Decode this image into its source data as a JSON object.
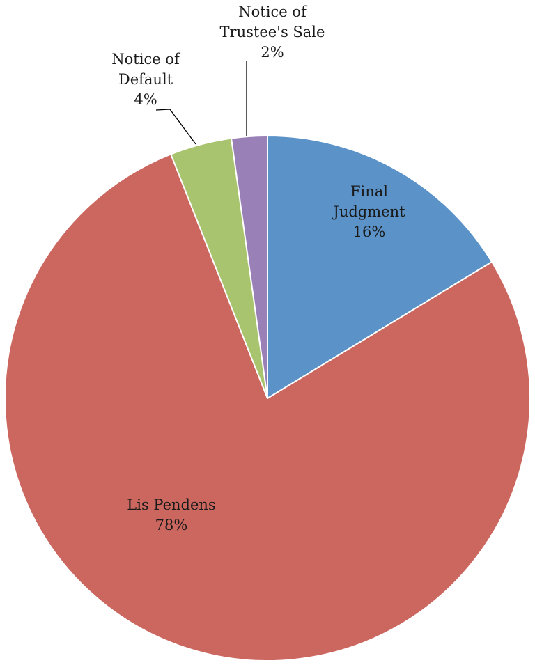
{
  "chart_data": {
    "type": "pie",
    "start_angle": "12 o'clock",
    "direction": "clockwise",
    "legend": "none",
    "slices": [
      {
        "name": "Final Judgment",
        "label_lines": [
          "Final",
          "Judgment"
        ],
        "percent_label": "16%",
        "value": 16.3,
        "color": "#5b93c9"
      },
      {
        "name": "Lis Pendens",
        "label_lines": [
          "Lis Pendens"
        ],
        "percent_label": "78%",
        "value": 77.7,
        "color": "#cc6760"
      },
      {
        "name": "Notice of Default",
        "label_lines": [
          "Notice of",
          "Default"
        ],
        "percent_label": "4%",
        "value": 3.8,
        "color": "#a9c46e"
      },
      {
        "name": "Notice of Trustee's Sale",
        "label_lines": [
          "Notice of",
          "Trustee's Sale"
        ],
        "percent_label": "2%",
        "value": 2.2,
        "color": "#9981b8"
      }
    ]
  }
}
